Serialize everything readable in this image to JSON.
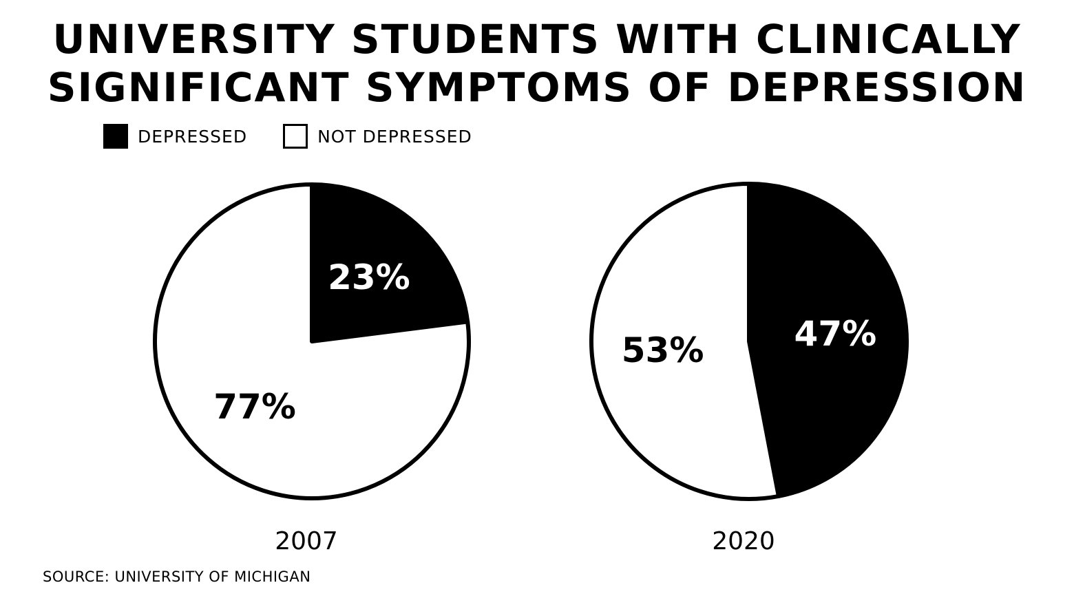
{
  "chart_data": {
    "type": "pie",
    "title": [
      "UNIVERSITY STUDENTS WITH CLINICALLY",
      "SIGNIFICANT SYMPTOMS OF DEPRESSION"
    ],
    "legend": [
      {
        "name": "DEPRESSED",
        "color": "#000000"
      },
      {
        "name": "NOT DEPRESSED",
        "color": "#ffffff"
      }
    ],
    "legend_placement": "top-left",
    "charts": [
      {
        "label": "2007",
        "slices": [
          {
            "name": "DEPRESSED",
            "value": 23,
            "label": "23%"
          },
          {
            "name": "NOT DEPRESSED",
            "value": 77,
            "label": "77%"
          }
        ]
      },
      {
        "label": "2020",
        "slices": [
          {
            "name": "DEPRESSED",
            "value": 47,
            "label": "47%"
          },
          {
            "name": "NOT DEPRESSED",
            "value": 53,
            "label": "53%"
          }
        ]
      }
    ],
    "source": "SOURCE: UNIVERSITY OF MICHIGAN"
  }
}
